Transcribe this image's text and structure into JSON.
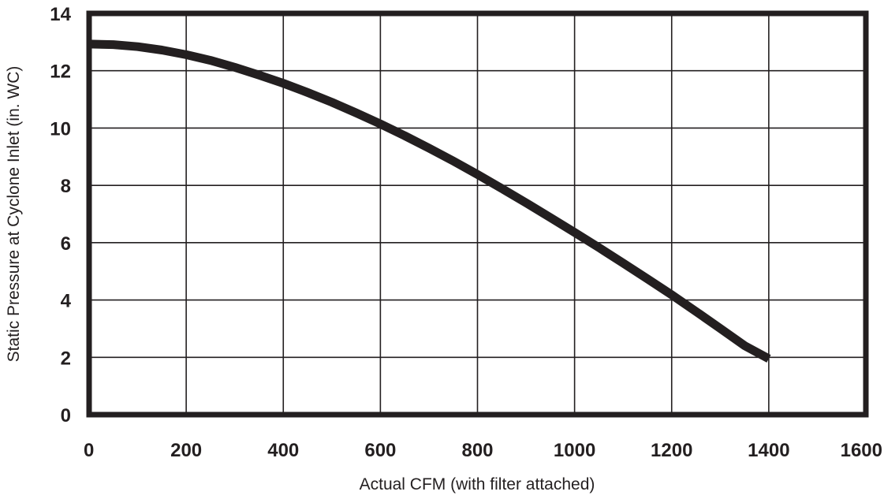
{
  "chart_data": {
    "type": "line",
    "title": "",
    "xlabel": "Actual CFM (with filter attached)",
    "ylabel": "Static Pressure at Cyclone Inlet (in. WC)",
    "xlim": [
      0,
      1600
    ],
    "ylim": [
      0,
      14
    ],
    "xticks": [
      0,
      200,
      400,
      600,
      800,
      1000,
      1200,
      1400,
      1600
    ],
    "yticks": [
      0,
      2,
      4,
      6,
      8,
      10,
      12,
      14
    ],
    "xtick_labels": [
      "0",
      "200",
      "400",
      "600",
      "800",
      "1000",
      "1200",
      "1400",
      "1600"
    ],
    "ytick_labels": [
      "0",
      "2",
      "4",
      "6",
      "8",
      "10",
      "12",
      "14"
    ],
    "grid": true,
    "series": [
      {
        "color": "#231f20",
        "x": [
          0,
          50,
          100,
          150,
          200,
          250,
          300,
          350,
          400,
          450,
          500,
          550,
          600,
          650,
          700,
          750,
          800,
          850,
          900,
          950,
          1000,
          1050,
          1100,
          1150,
          1200,
          1250,
          1300,
          1350,
          1400
        ],
        "y": [
          12.93,
          12.91,
          12.84,
          12.72,
          12.56,
          12.36,
          12.12,
          11.85,
          11.56,
          11.24,
          10.9,
          10.53,
          10.14,
          9.73,
          9.3,
          8.85,
          8.38,
          7.89,
          7.39,
          6.88,
          6.36,
          5.83,
          5.29,
          4.74,
          4.18,
          3.6,
          3.01,
          2.41,
          1.95
        ]
      }
    ]
  }
}
